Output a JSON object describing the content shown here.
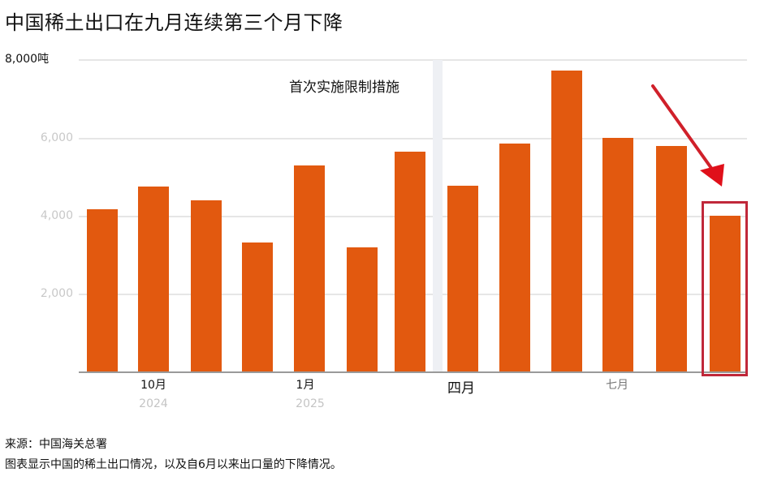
{
  "title": "中国稀土出口在九月连续第三个月下降",
  "chart_data": {
    "type": "bar",
    "title": "中国稀土出口在九月连续第三个月下降",
    "ylabel": "吨",
    "xlabel": "",
    "ylim": [
      0,
      8000
    ],
    "yticks": [
      "8,000吨",
      "6,000",
      "4,000",
      "2,000"
    ],
    "categories": [
      "2024-09",
      "2024-10",
      "2024-11",
      "2024-12",
      "2025-01",
      "2025-02",
      "2025-03",
      "2025-04",
      "2025-05",
      "2025-06",
      "2025-07",
      "2025-08",
      "2025-09"
    ],
    "x_tick_labels": [
      {
        "label": "10月",
        "year": "2024"
      },
      {
        "label": "1月",
        "year": "2025"
      },
      {
        "label": "四月",
        "year": ""
      },
      {
        "label": "七月",
        "year": ""
      }
    ],
    "values": [
      4180,
      4750,
      4400,
      3330,
      5300,
      3200,
      5660,
      4770,
      5850,
      7730,
      6000,
      5790,
      4000
    ],
    "annotations": [
      {
        "text": "首次实施限制措施",
        "position": "between 2025-03 and 2025-04"
      },
      {
        "text": "red arrow and box highlighting 2025-09",
        "position": "2025-09"
      }
    ],
    "grid": true,
    "legend": "none",
    "bar_color": "#e2590f"
  },
  "axis": {
    "y_top_label": "8,000吨",
    "y_ticks": [
      "6,000",
      "4,000",
      "2,000"
    ],
    "x_labels": [
      "10月",
      "1月",
      "四月",
      "七月"
    ],
    "years": [
      "2024",
      "2025"
    ]
  },
  "annotation": "首次实施限制措施",
  "footer": {
    "source": "来源：中国海关总署",
    "caption": "图表显示中国的稀土出口情况，以及自6月以来出口量的下降情况。"
  },
  "colors": {
    "bar": "#e2590f",
    "highlight": "#c0283a",
    "arrow": "#d0202a"
  }
}
